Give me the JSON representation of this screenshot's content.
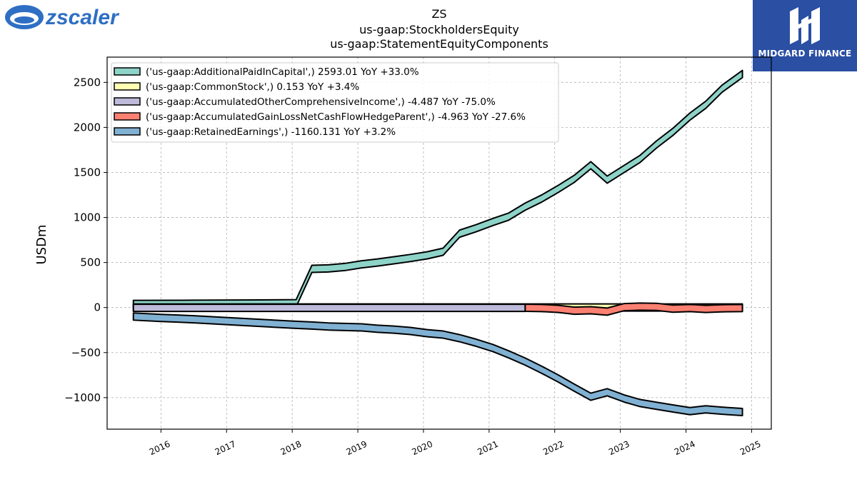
{
  "brand_left": {
    "name": "zscaler",
    "color": "#2e6fc4"
  },
  "brand_right": {
    "name": "MIDGARD FINANCE",
    "bg": "#2a4fa3"
  },
  "chart_data": {
    "type": "area",
    "title": [
      "ZS",
      "us-gaap:StockholdersEquity",
      "us-gaap:StatementEquityComponents"
    ],
    "xlabel": "",
    "ylabel": "USDm",
    "xlim": [
      2015.18,
      2025.3
    ],
    "ylim": [
      -1350,
      2780
    ],
    "xticks": [
      2016,
      2017,
      2018,
      2019,
      2020,
      2021,
      2022,
      2023,
      2024,
      2025
    ],
    "yticks": [
      -1000,
      -500,
      0,
      500,
      1000,
      1500,
      2000,
      2500
    ],
    "ytick_labels": [
      "−1000",
      "−500",
      "0",
      "500",
      "1000",
      "1500",
      "2000",
      "2500"
    ],
    "grid": true,
    "legend_position": "top-left",
    "series": [
      {
        "name": "('us-gaap:AdditionalPaidInCapital',) 2593.01 YoY +33.0%",
        "color": "#8dd3c7",
        "points": [
          [
            2015.58,
            40
          ],
          [
            2016.5,
            42
          ],
          [
            2017.5,
            45
          ],
          [
            2018.06,
            48
          ],
          [
            2018.3,
            430
          ],
          [
            2018.55,
            435
          ],
          [
            2018.8,
            450
          ],
          [
            2019.06,
            480
          ],
          [
            2019.3,
            500
          ],
          [
            2019.55,
            525
          ],
          [
            2019.8,
            550
          ],
          [
            2020.06,
            580
          ],
          [
            2020.3,
            620
          ],
          [
            2020.55,
            820
          ],
          [
            2020.8,
            880
          ],
          [
            2021.06,
            950
          ],
          [
            2021.3,
            1010
          ],
          [
            2021.55,
            1120
          ],
          [
            2021.8,
            1210
          ],
          [
            2022.06,
            1320
          ],
          [
            2022.3,
            1430
          ],
          [
            2022.55,
            1580
          ],
          [
            2022.8,
            1420
          ],
          [
            2023.06,
            1540
          ],
          [
            2023.3,
            1650
          ],
          [
            2023.55,
            1810
          ],
          [
            2023.8,
            1950
          ],
          [
            2024.06,
            2120
          ],
          [
            2024.3,
            2250
          ],
          [
            2024.55,
            2430
          ],
          [
            2024.86,
            2593
          ]
        ]
      },
      {
        "name": "('us-gaap:CommonStock',) 0.153 YoY +3.4%",
        "color": "#ffffb3",
        "points": [
          [
            2015.58,
            0.1
          ],
          [
            2024.86,
            0.153
          ]
        ]
      },
      {
        "name": "('us-gaap:AccumulatedOtherComprehensiveIncome',) -4.487 YoY -75.0%",
        "color": "#bebada",
        "points": [
          [
            2015.58,
            -3
          ],
          [
            2021.55,
            -3
          ]
        ]
      },
      {
        "name": "('us-gaap:AccumulatedGainLossNetCashFlowHedgeParent',) -4.963 YoY -27.6%",
        "color": "#fb8072",
        "points": [
          [
            2021.55,
            -2
          ],
          [
            2021.8,
            -5
          ],
          [
            2022.06,
            -15
          ],
          [
            2022.3,
            -35
          ],
          [
            2022.55,
            -30
          ],
          [
            2022.8,
            -45
          ],
          [
            2023.06,
            5
          ],
          [
            2023.3,
            10
          ],
          [
            2023.55,
            8
          ],
          [
            2023.8,
            -12
          ],
          [
            2024.06,
            -5
          ],
          [
            2024.3,
            -15
          ],
          [
            2024.55,
            -8
          ],
          [
            2024.86,
            -5
          ]
        ]
      },
      {
        "name": "('us-gaap:RetainedEarnings',) -1160.131 YoY +3.2%",
        "color": "#80b1d3",
        "points": [
          [
            2015.58,
            -100
          ],
          [
            2016.0,
            -115
          ],
          [
            2016.5,
            -130
          ],
          [
            2017.0,
            -150
          ],
          [
            2017.5,
            -170
          ],
          [
            2018.0,
            -190
          ],
          [
            2018.3,
            -200
          ],
          [
            2018.55,
            -210
          ],
          [
            2018.8,
            -215
          ],
          [
            2019.06,
            -220
          ],
          [
            2019.3,
            -235
          ],
          [
            2019.55,
            -245
          ],
          [
            2019.8,
            -260
          ],
          [
            2020.06,
            -285
          ],
          [
            2020.3,
            -300
          ],
          [
            2020.55,
            -340
          ],
          [
            2020.8,
            -390
          ],
          [
            2021.06,
            -450
          ],
          [
            2021.3,
            -520
          ],
          [
            2021.55,
            -600
          ],
          [
            2021.8,
            -690
          ],
          [
            2022.06,
            -790
          ],
          [
            2022.3,
            -890
          ],
          [
            2022.55,
            -990
          ],
          [
            2022.8,
            -940
          ],
          [
            2023.06,
            -1010
          ],
          [
            2023.3,
            -1060
          ],
          [
            2023.55,
            -1090
          ],
          [
            2023.8,
            -1120
          ],
          [
            2024.06,
            -1150
          ],
          [
            2024.3,
            -1130
          ],
          [
            2024.55,
            -1145
          ],
          [
            2024.86,
            -1160
          ]
        ]
      }
    ]
  }
}
